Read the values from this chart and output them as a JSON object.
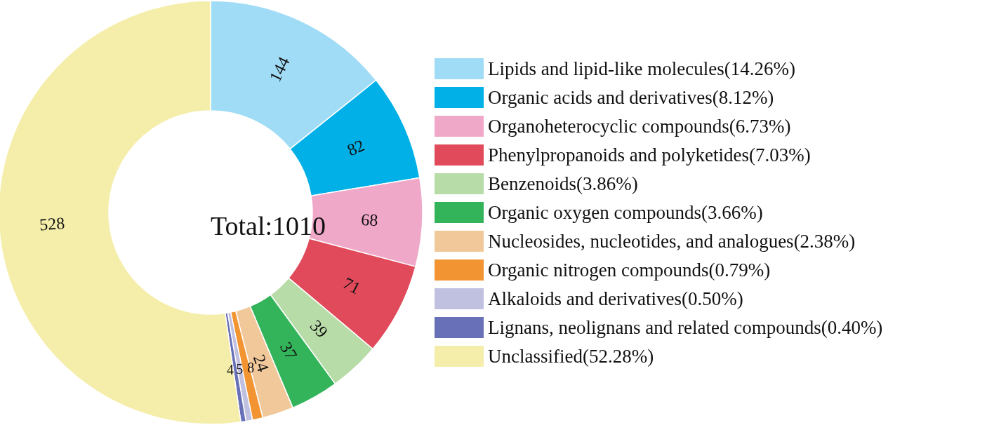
{
  "chart_data": {
    "type": "donut",
    "categories": [
      "Lipids and lipid-like molecules(14.26%)",
      "Organic acids and derivatives(8.12%)",
      "Organoheterocyclic compounds(6.73%)",
      "Phenylpropanoids and polyketides(7.03%)",
      "Benzenoids(3.86%)",
      "Organic oxygen compounds(3.66%)",
      "Nucleosides, nucleotides, and analogues(2.38%)",
      "Organic nitrogen compounds(0.79%)",
      "Alkaloids and derivatives(0.50%)",
      "Lignans, neolignans and related compounds(0.40%)",
      "Unclassified(52.28%)"
    ],
    "values": [
      144,
      82,
      68,
      71,
      39,
      37,
      24,
      8,
      5,
      4,
      528
    ],
    "colors": [
      "#a0dcf5",
      "#00b0e6",
      "#f0a8c8",
      "#e04a5a",
      "#b8dca8",
      "#34b45a",
      "#f0c89a",
      "#f39433",
      "#c0c0e0",
      "#6870b8",
      "#f5eeaa"
    ],
    "data_labels": true,
    "legend": "right",
    "annotations": [
      "Total:1010"
    ]
  }
}
